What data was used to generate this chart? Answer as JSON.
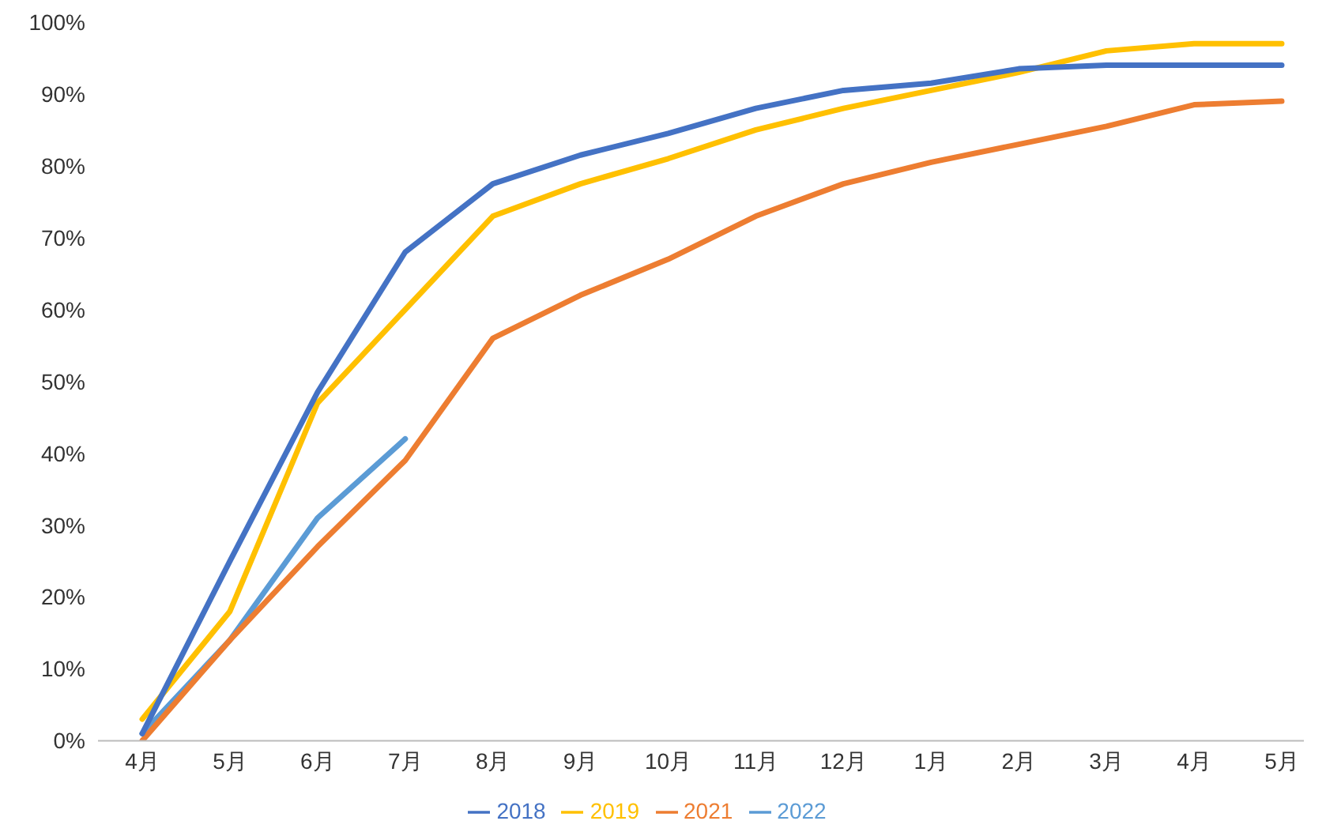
{
  "chart_data": {
    "type": "line",
    "categories": [
      "4月",
      "5月",
      "6月",
      "7月",
      "8月",
      "9月",
      "10月",
      "11月",
      "12月",
      "1月",
      "2月",
      "3月",
      "4月",
      "5月"
    ],
    "series": [
      {
        "name": "2022",
        "color": "#5b9bd5",
        "values": [
          1,
          14,
          31,
          42,
          null,
          null,
          null,
          null,
          null,
          null,
          null,
          null,
          null,
          null
        ]
      },
      {
        "name": "2021",
        "color": "#ed7d31",
        "values": [
          0,
          14,
          27,
          39,
          56,
          62,
          67,
          73,
          77.5,
          80.5,
          83,
          85.5,
          88.5,
          89
        ]
      },
      {
        "name": "2019",
        "color": "#ffc000",
        "values": [
          3,
          18,
          47,
          60,
          73,
          77.5,
          81,
          85,
          88,
          90.5,
          93,
          96,
          97,
          97
        ]
      },
      {
        "name": "2018",
        "color": "#4472c4",
        "values": [
          1,
          25,
          48.5,
          68,
          77.5,
          81.5,
          84.5,
          88,
          90.5,
          91.5,
          93.5,
          94,
          94,
          94
        ]
      }
    ],
    "ylim": [
      0,
      100
    ],
    "yticks": [
      {
        "value": 0,
        "label": "0%"
      },
      {
        "value": 10,
        "label": "10%"
      },
      {
        "value": 20,
        "label": "20%"
      },
      {
        "value": 30,
        "label": "30%"
      },
      {
        "value": 40,
        "label": "40%"
      },
      {
        "value": 50,
        "label": "50%"
      },
      {
        "value": 60,
        "label": "60%"
      },
      {
        "value": 70,
        "label": "70%"
      },
      {
        "value": 80,
        "label": "80%"
      },
      {
        "value": 90,
        "label": "90%"
      },
      {
        "value": 100,
        "label": "100%"
      }
    ],
    "grid": false,
    "legend": "bottom",
    "marker": "none",
    "line_style": "solid"
  }
}
